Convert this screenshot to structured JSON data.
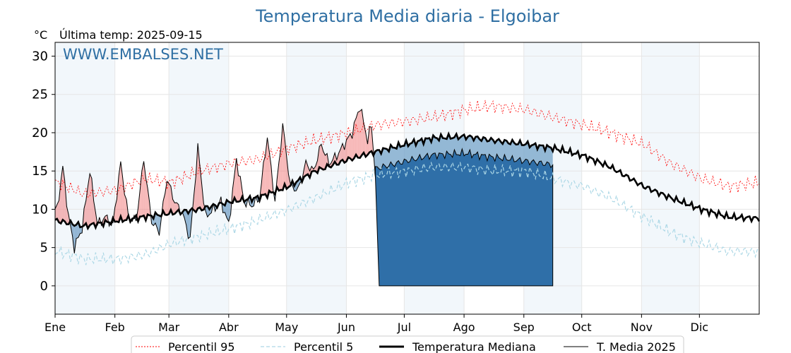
{
  "title": "Temperatura Media diaria - Elgoibar",
  "unit_label": "°C",
  "last_temp_label": "Última temp: 2025-09-15",
  "watermark": "WWW.EMBALSES.NET",
  "colors": {
    "title": "#2f6fa3",
    "p95": "#ff0000",
    "p5": "#add8e6",
    "median": "#000000",
    "current": "#000000",
    "above_fill": "#f08080",
    "below_fill": "#4682b4",
    "band": "#f2f7fb",
    "grid": "#e6e6e6"
  },
  "chart_data": {
    "type": "line",
    "title": "Temperatura Media diaria - Elgoibar",
    "ylabel": "°C",
    "ylim": [
      -3.7,
      31.8
    ],
    "yticks": [
      0,
      5,
      10,
      15,
      20,
      25,
      30
    ],
    "xlim_days": [
      0,
      365
    ],
    "months": [
      "Ene",
      "Feb",
      "Mar",
      "Abr",
      "May",
      "Jun",
      "Jul",
      "Ago",
      "Sep",
      "Oct",
      "Nov",
      "Dic"
    ],
    "grid": true,
    "legend_position": "bottom-center",
    "series": [
      {
        "name": "Percentil 95",
        "style": "dotted",
        "x_day": [
          1,
          15,
          32,
          46,
          60,
          75,
          91,
          105,
          121,
          135,
          152,
          166,
          182,
          196,
          213,
          227,
          244,
          258,
          274,
          288,
          305,
          319,
          335,
          349,
          365
        ],
        "values": [
          13.5,
          12.0,
          12.5,
          14.0,
          13.5,
          15.0,
          16.0,
          16.5,
          18.0,
          19.0,
          20.0,
          21.0,
          21.5,
          22.0,
          23.0,
          23.5,
          23.0,
          22.0,
          21.0,
          20.0,
          18.5,
          16.0,
          14.0,
          13.0,
          13.5
        ]
      },
      {
        "name": "Percentil 5",
        "style": "dashed",
        "x_day": [
          1,
          15,
          32,
          46,
          60,
          75,
          91,
          105,
          121,
          135,
          152,
          166,
          182,
          196,
          213,
          227,
          244,
          258,
          274,
          288,
          305,
          319,
          335,
          349,
          365
        ],
        "values": [
          4.5,
          3.5,
          3.5,
          4.0,
          5.5,
          6.5,
          7.5,
          8.5,
          10.0,
          11.5,
          13.5,
          14.5,
          15.0,
          15.5,
          15.5,
          15.0,
          15.0,
          14.0,
          13.0,
          11.5,
          9.0,
          7.0,
          5.5,
          4.5,
          4.5
        ]
      },
      {
        "name": "Temperatura Mediana",
        "style": "solid-thick",
        "x_day": [
          1,
          15,
          32,
          46,
          60,
          75,
          91,
          105,
          121,
          135,
          152,
          166,
          182,
          196,
          213,
          227,
          244,
          258,
          274,
          288,
          305,
          319,
          335,
          349,
          365
        ],
        "values": [
          8.5,
          7.8,
          8.5,
          9.0,
          9.5,
          10.0,
          11.0,
          11.5,
          13.0,
          15.0,
          16.5,
          17.5,
          18.5,
          19.3,
          19.5,
          19.0,
          18.5,
          18.0,
          17.0,
          15.5,
          13.0,
          11.5,
          10.0,
          9.0,
          8.8
        ]
      },
      {
        "name": "T. Media 2025",
        "style": "solid-thin",
        "x_day": [
          1,
          4,
          7,
          10,
          14,
          18,
          22,
          26,
          30,
          34,
          38,
          42,
          46,
          50,
          54,
          58,
          62,
          66,
          70,
          74,
          78,
          82,
          86,
          90,
          94,
          98,
          102,
          106,
          110,
          114,
          118,
          122,
          126,
          130,
          134,
          138,
          142,
          146,
          150,
          154,
          158,
          162,
          164,
          166,
          258
        ],
        "values": [
          10.0,
          15.5,
          9.0,
          5.0,
          7.5,
          15.0,
          8.0,
          9.0,
          8.0,
          16.0,
          9.0,
          8.5,
          16.5,
          8.5,
          7.0,
          14.0,
          11.0,
          9.5,
          6.0,
          18.0,
          9.0,
          10.0,
          11.0,
          8.0,
          16.5,
          11.0,
          10.5,
          11.5,
          19.5,
          11.0,
          21.0,
          13.0,
          12.5,
          16.0,
          15.0,
          18.5,
          16.0,
          17.0,
          18.5,
          20.0,
          23.5,
          19.0,
          21.0,
          14.5,
          16.5
        ],
        "daily_ranges": [
          {
            "from": 166,
            "to": 258,
            "note": "last_temp_dropline"
          }
        ]
      }
    ]
  },
  "legend": {
    "items": [
      {
        "label": "Percentil 95"
      },
      {
        "label": "Percentil 5"
      },
      {
        "label": "Temperatura Mediana"
      },
      {
        "label": "T. Media 2025"
      }
    ]
  }
}
